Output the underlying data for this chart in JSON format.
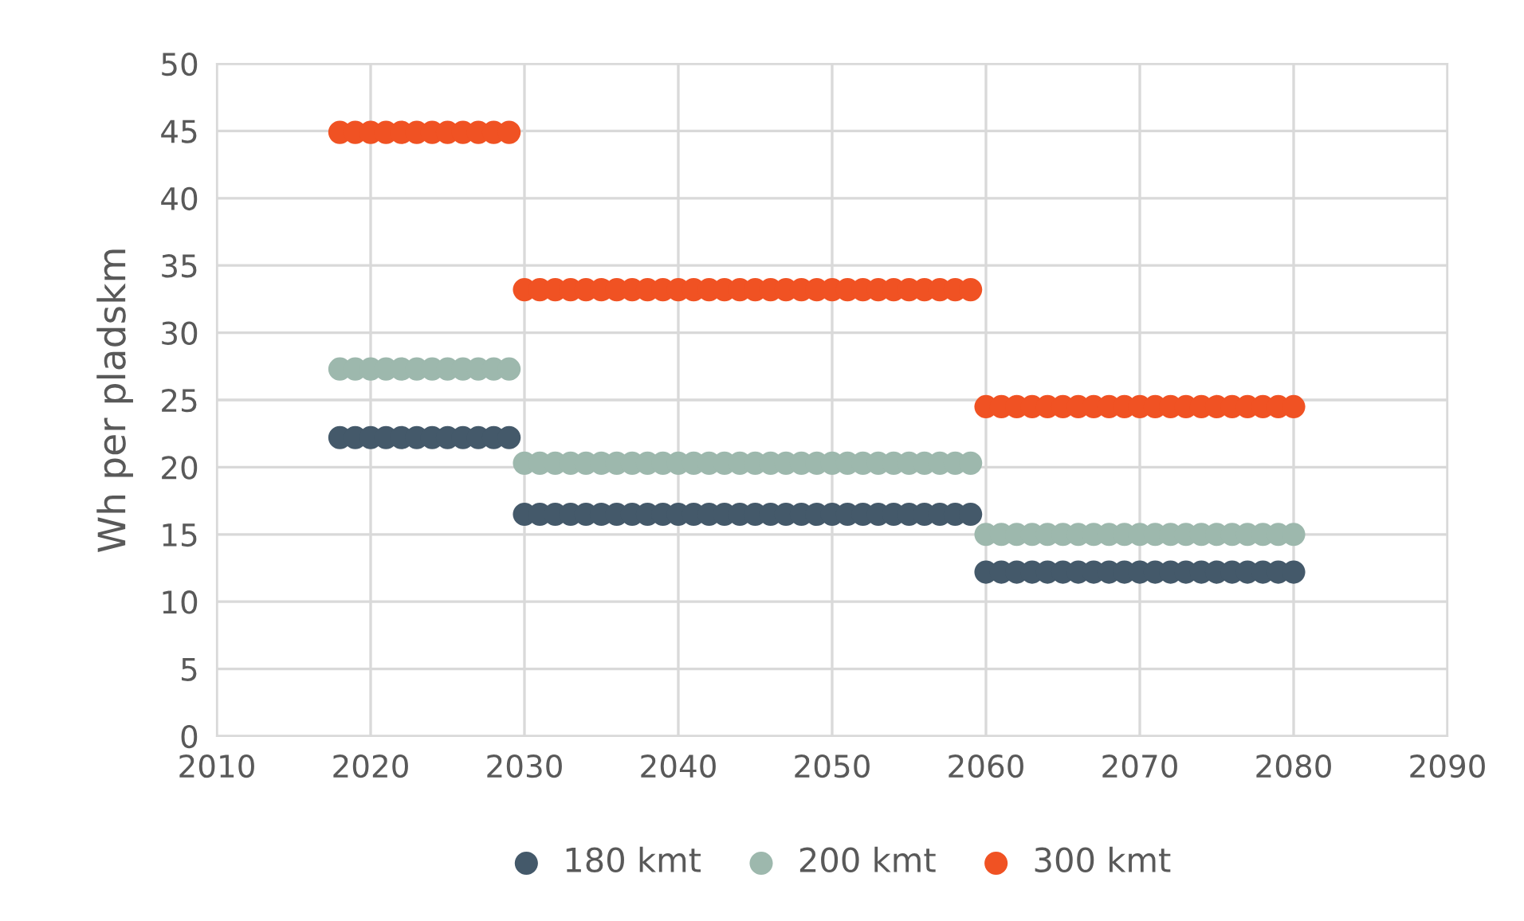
{
  "chart_data": {
    "type": "scatter",
    "ylabel": "Wh per pladskm",
    "xlim": [
      2010,
      2090
    ],
    "xticks": [
      2010,
      2020,
      2030,
      2040,
      2050,
      2060,
      2070,
      2080,
      2090
    ],
    "ylim": [
      0,
      50
    ],
    "yticks": [
      0,
      5,
      10,
      15,
      20,
      25,
      30,
      35,
      40,
      45,
      50
    ],
    "grid": true,
    "legend": "bottom",
    "marker": "circle",
    "x": [
      2018,
      2019,
      2020,
      2021,
      2022,
      2023,
      2024,
      2025,
      2026,
      2027,
      2028,
      2029,
      2030,
      2031,
      2032,
      2033,
      2034,
      2035,
      2036,
      2037,
      2038,
      2039,
      2040,
      2041,
      2042,
      2043,
      2044,
      2045,
      2046,
      2047,
      2048,
      2049,
      2050,
      2051,
      2052,
      2053,
      2054,
      2055,
      2056,
      2057,
      2058,
      2059,
      2060,
      2061,
      2062,
      2063,
      2064,
      2065,
      2066,
      2067,
      2068,
      2069,
      2070,
      2071,
      2072,
      2073,
      2074,
      2075,
      2076,
      2077,
      2078,
      2079,
      2080
    ],
    "series": [
      {
        "name": "180 kmt",
        "color": "#44596a",
        "values": [
          22.2,
          22.2,
          22.2,
          22.2,
          22.2,
          22.2,
          22.2,
          22.2,
          22.2,
          22.2,
          22.2,
          22.2,
          16.5,
          16.5,
          16.5,
          16.5,
          16.5,
          16.5,
          16.5,
          16.5,
          16.5,
          16.5,
          16.5,
          16.5,
          16.5,
          16.5,
          16.5,
          16.5,
          16.5,
          16.5,
          16.5,
          16.5,
          16.5,
          16.5,
          16.5,
          16.5,
          16.5,
          16.5,
          16.5,
          16.5,
          16.5,
          16.5,
          12.2,
          12.2,
          12.2,
          12.2,
          12.2,
          12.2,
          12.2,
          12.2,
          12.2,
          12.2,
          12.2,
          12.2,
          12.2,
          12.2,
          12.2,
          12.2,
          12.2,
          12.2,
          12.2,
          12.2,
          12.2
        ]
      },
      {
        "name": "200 kmt",
        "color": "#9db8ad",
        "values": [
          27.3,
          27.3,
          27.3,
          27.3,
          27.3,
          27.3,
          27.3,
          27.3,
          27.3,
          27.3,
          27.3,
          27.3,
          20.3,
          20.3,
          20.3,
          20.3,
          20.3,
          20.3,
          20.3,
          20.3,
          20.3,
          20.3,
          20.3,
          20.3,
          20.3,
          20.3,
          20.3,
          20.3,
          20.3,
          20.3,
          20.3,
          20.3,
          20.3,
          20.3,
          20.3,
          20.3,
          20.3,
          20.3,
          20.3,
          20.3,
          20.3,
          20.3,
          15.0,
          15.0,
          15.0,
          15.0,
          15.0,
          15.0,
          15.0,
          15.0,
          15.0,
          15.0,
          15.0,
          15.0,
          15.0,
          15.0,
          15.0,
          15.0,
          15.0,
          15.0,
          15.0,
          15.0,
          15.0
        ]
      },
      {
        "name": "300 kmt",
        "color": "#f05223",
        "values": [
          44.9,
          44.9,
          44.9,
          44.9,
          44.9,
          44.9,
          44.9,
          44.9,
          44.9,
          44.9,
          44.9,
          44.9,
          33.2,
          33.2,
          33.2,
          33.2,
          33.2,
          33.2,
          33.2,
          33.2,
          33.2,
          33.2,
          33.2,
          33.2,
          33.2,
          33.2,
          33.2,
          33.2,
          33.2,
          33.2,
          33.2,
          33.2,
          33.2,
          33.2,
          33.2,
          33.2,
          33.2,
          33.2,
          33.2,
          33.2,
          33.2,
          33.2,
          24.5,
          24.5,
          24.5,
          24.5,
          24.5,
          24.5,
          24.5,
          24.5,
          24.5,
          24.5,
          24.5,
          24.5,
          24.5,
          24.5,
          24.5,
          24.5,
          24.5,
          24.5,
          24.5,
          24.5,
          24.5
        ]
      }
    ]
  }
}
